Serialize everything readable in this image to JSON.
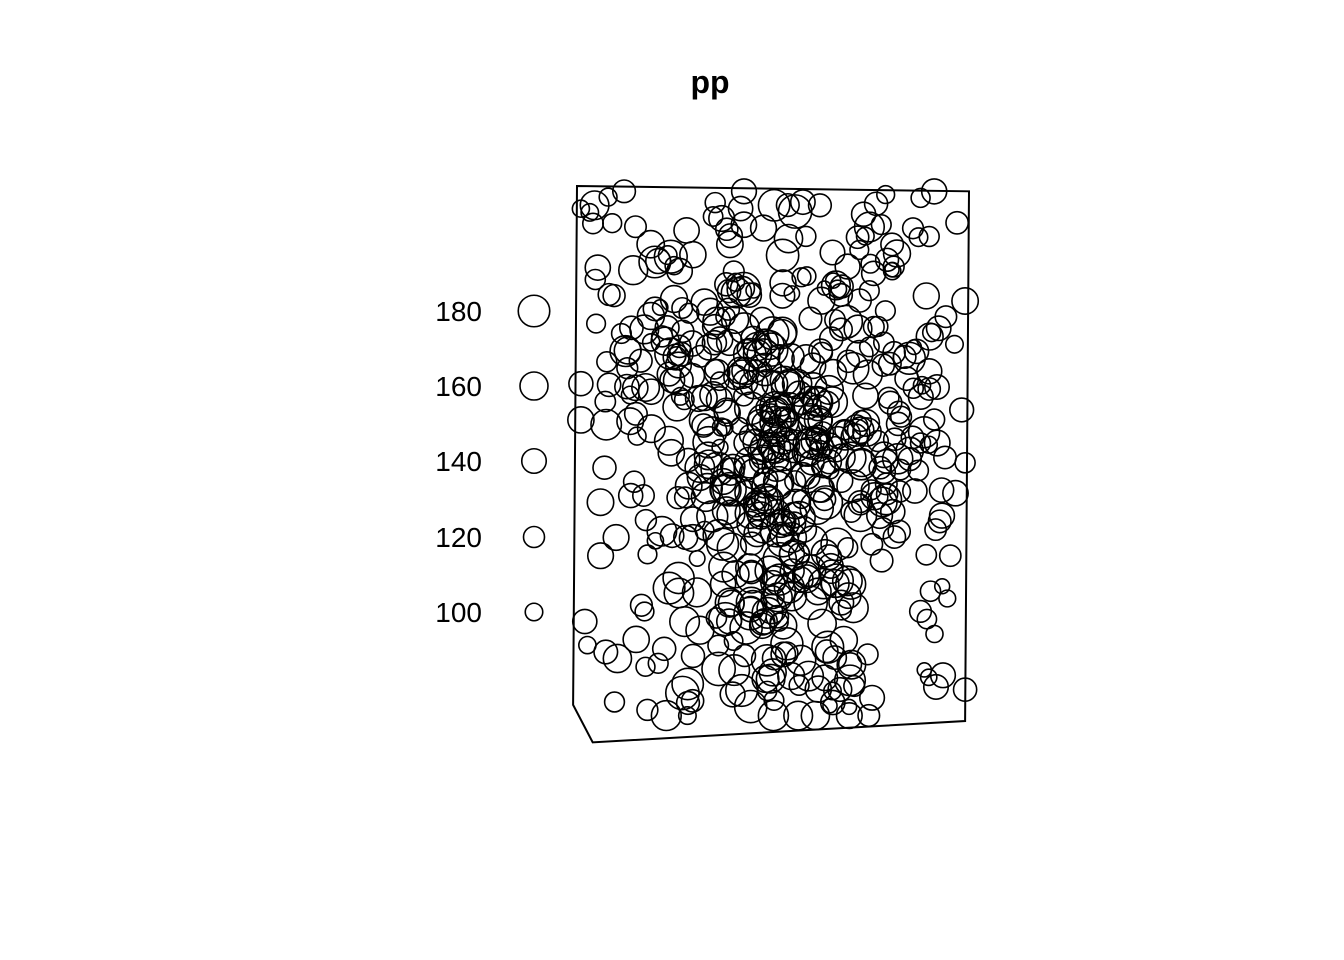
{
  "chart_data": {
    "type": "scatter",
    "title": "pp",
    "marks": "circle",
    "mark_size_encodes": "mark value",
    "legend": {
      "placement": "left",
      "entries": [
        {
          "label": "180",
          "value": 180
        },
        {
          "label": "160",
          "value": 160
        },
        {
          "label": "140",
          "value": 140
        },
        {
          "label": "120",
          "value": 120
        },
        {
          "label": "100",
          "value": 100
        }
      ]
    },
    "window": [
      [
        0.0,
        0.0
      ],
      [
        1.0,
        0.01
      ],
      [
        0.99,
        1.0
      ],
      [
        0.04,
        1.04
      ],
      [
        -0.01,
        0.97
      ]
    ],
    "points": {
      "count": 600,
      "value_min": 80,
      "value_max": 190,
      "clusters": [
        {
          "x": 0.5,
          "y": 0.58,
          "sx": 0.12,
          "sy": 0.22,
          "share": 0.4,
          "value_peak": 160
        },
        {
          "x": 0.32,
          "y": 0.3,
          "sx": 0.16,
          "sy": 0.12,
          "share": 0.15,
          "value_peak": 140
        },
        {
          "x": 0.72,
          "y": 0.4,
          "sx": 0.14,
          "sy": 0.15,
          "share": 0.15,
          "value_peak": 135
        },
        {
          "x": 0.5,
          "y": 0.5,
          "sx": 0.5,
          "sy": 0.5,
          "share": 0.3,
          "value_peak": 120
        }
      ]
    }
  }
}
